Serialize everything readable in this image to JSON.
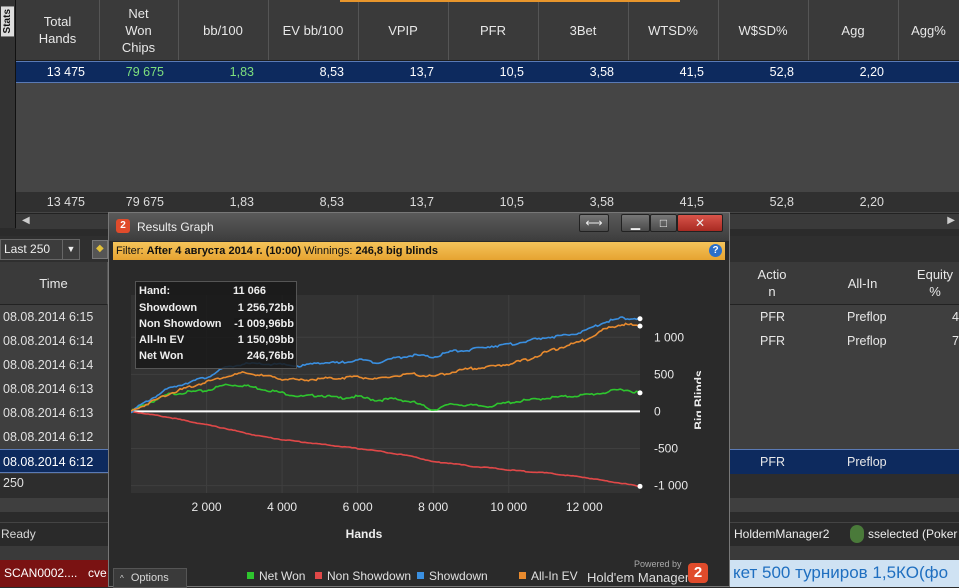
{
  "stats": {
    "tab_label": "Stats",
    "headers": [
      "Total\nHands",
      "Net\nWon\nChips",
      "bb/100",
      "EV bb/100",
      "VPIP",
      "PFR",
      "3Bet",
      "WTSD%",
      "W$SD%",
      "Agg",
      "Agg%"
    ],
    "selected_row": [
      "13 475",
      "79 675",
      "1,83",
      "8,53",
      "13,7",
      "10,5",
      "3,58",
      "41,5",
      "52,8",
      "2,20",
      ""
    ],
    "total_row": [
      "13 475",
      "79 675",
      "1,83",
      "8,53",
      "13,7",
      "10,5",
      "3,58",
      "41,5",
      "52,8",
      "2,20",
      ""
    ],
    "won_color": "#7ee07e"
  },
  "toolbar": {
    "filter_value": "Last 250"
  },
  "hands": {
    "time_header": "Time",
    "times": [
      "08.08.2014 6:15",
      "08.08.2014 6:14",
      "08.08.2014 6:14",
      "08.08.2014 6:13",
      "08.08.2014 6:13",
      "08.08.2014 6:12",
      "08.08.2014 6:12"
    ],
    "count": "250",
    "right_headers": [
      "Actio\nn",
      "All-In",
      "Equity\n%"
    ],
    "right_rows": [
      {
        "action": "PFR",
        "allin": "Preflop",
        "equity": "4"
      },
      {
        "action": "PFR",
        "allin": "Preflop",
        "equity": "7"
      },
      {
        "action": "",
        "allin": "",
        "equity": ""
      },
      {
        "action": "",
        "allin": "",
        "equity": ""
      },
      {
        "action": "",
        "allin": "",
        "equity": ""
      },
      {
        "action": "",
        "allin": "",
        "equity": ""
      },
      {
        "action": "PFR",
        "allin": "Preflop",
        "equity": ""
      }
    ]
  },
  "status": {
    "ready": "Ready",
    "app": "HoldemManager2",
    "user": "sselected (Poker"
  },
  "taskbar": {
    "item1": "SCAN0002....",
    "item2": "cve",
    "ticker": "кет 500 турниров 1,5КО(фо"
  },
  "graph": {
    "title": "Results Graph",
    "filter_label": "Filter:",
    "filter_value": "After 4 августа 2014 г. (10:00)",
    "winnings_label": "Winnings:",
    "winnings_value": "246,8 big blinds",
    "tooltip": {
      "hand_label": "Hand:",
      "hand_value": "11 066",
      "showdown_label": "Showdown",
      "showdown_value": "1 256,72bb",
      "nonshowdown_label": "Non Showdown",
      "nonshowdown_value": "-1 009,96bb",
      "allin_label": "All-In EV",
      "allin_value": "1 150,09bb",
      "netwon_label": "Net Won",
      "netwon_value": "246,76bb"
    },
    "options_label": "Options",
    "powered_by": "Powered by",
    "brand": "Hold'em Manager",
    "logo_digit": "2",
    "expand_icon": "⟷",
    "minimize_icon": "▁",
    "maximize_icon": "□",
    "close_icon": "✕"
  },
  "chart_data": {
    "type": "line",
    "xlabel": "Hands",
    "ylabel": "Big Blinds",
    "xlim": [
      0,
      13475
    ],
    "ylim": [
      -1100,
      1300
    ],
    "x_ticks": [
      2000,
      4000,
      6000,
      8000,
      10000,
      12000
    ],
    "x_tick_labels": [
      "2 000",
      "4 000",
      "6 000",
      "8 000",
      "10 000",
      "12 000"
    ],
    "y_ticks": [
      1000,
      500,
      0,
      -500,
      -1000
    ],
    "y_tick_labels": [
      "1 000",
      "500",
      "0",
      "-500",
      "-1 000"
    ],
    "x": [
      0,
      500,
      1000,
      1500,
      2000,
      2500,
      3000,
      3500,
      4000,
      4500,
      5000,
      5500,
      6000,
      6500,
      7000,
      7500,
      8000,
      8500,
      9000,
      9500,
      10000,
      10500,
      11000,
      11500,
      12000,
      12500,
      13000,
      13475
    ],
    "series": [
      {
        "name": "Net Won",
        "color": "#2ec52e",
        "values": [
          0,
          120,
          230,
          260,
          280,
          360,
          350,
          300,
          250,
          200,
          220,
          180,
          200,
          150,
          170,
          120,
          20,
          100,
          80,
          70,
          120,
          150,
          180,
          200,
          220,
          250,
          300,
          250
        ]
      },
      {
        "name": "Non Showdown",
        "color": "#e04848",
        "values": [
          0,
          -40,
          -80,
          -130,
          -180,
          -230,
          -290,
          -340,
          -380,
          -410,
          -440,
          -470,
          -500,
          -530,
          -570,
          -610,
          -680,
          -700,
          -740,
          -760,
          -790,
          -810,
          -830,
          -860,
          -890,
          -930,
          -970,
          -1010
        ]
      },
      {
        "name": "Showdown",
        "color": "#3a8fe0",
        "values": [
          0,
          160,
          310,
          390,
          460,
          590,
          640,
          640,
          630,
          610,
          660,
          650,
          700,
          660,
          720,
          760,
          730,
          810,
          830,
          880,
          900,
          950,
          1000,
          1020,
          1080,
          1200,
          1260,
          1250
        ]
      },
      {
        "name": "All-In EV",
        "color": "#e88a2e",
        "values": [
          0,
          120,
          240,
          320,
          400,
          470,
          520,
          480,
          440,
          420,
          440,
          450,
          470,
          430,
          480,
          500,
          470,
          530,
          580,
          600,
          640,
          700,
          800,
          880,
          960,
          1100,
          1180,
          1150
        ]
      }
    ],
    "zero_line_color": "#ffffff",
    "legend_position": "bottom"
  }
}
